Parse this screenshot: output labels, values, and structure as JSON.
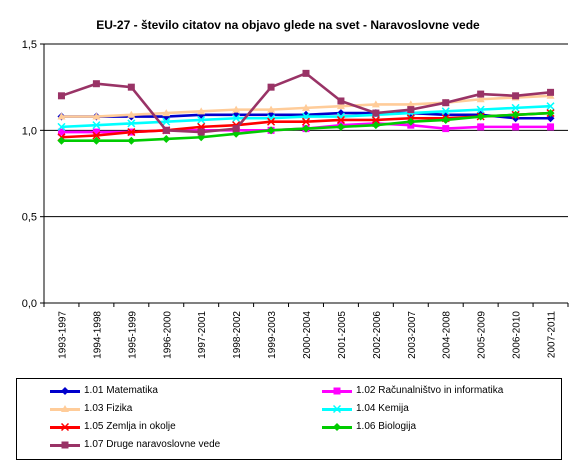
{
  "chart_data": {
    "type": "line",
    "title": "EU-27 - število citatov na objavo glede na svet - Naravoslovne vede",
    "xlabel": "",
    "ylabel": "",
    "ylim": [
      0,
      1.5
    ],
    "yticks": [
      "0,0",
      "0,5",
      "1,0",
      "1,5"
    ],
    "grid": "horizontal major",
    "legend_position": "bottom",
    "categories": [
      "1993-1997",
      "1994-1998",
      "1995-1999",
      "1996-2000",
      "1997-2001",
      "1998-2002",
      "1999-2003",
      "2000-2004",
      "2001-2005",
      "2002-2006",
      "2003-2007",
      "2004-2008",
      "2005-2009",
      "2006-2010",
      "2007-2011"
    ],
    "series": [
      {
        "name": "1.01 Matematika",
        "color": "#0000cc",
        "marker": "diamond",
        "values": [
          1.08,
          1.08,
          1.08,
          1.08,
          1.09,
          1.09,
          1.09,
          1.09,
          1.1,
          1.1,
          1.1,
          1.09,
          1.09,
          1.07,
          1.07
        ]
      },
      {
        "name": "1.02 Računalništvo in informatika",
        "color": "#ff00ff",
        "marker": "square",
        "values": [
          0.99,
          0.99,
          0.99,
          1.0,
          1.0,
          1.0,
          1.0,
          1.01,
          1.03,
          1.04,
          1.03,
          1.01,
          1.02,
          1.02,
          1.02
        ]
      },
      {
        "name": "1.03 Fizika",
        "color": "#ffcc99",
        "marker": "triangle",
        "values": [
          1.08,
          1.08,
          1.09,
          1.1,
          1.11,
          1.12,
          1.12,
          1.13,
          1.14,
          1.15,
          1.15,
          1.16,
          1.18,
          1.19,
          1.2
        ]
      },
      {
        "name": "1.04 Kemija",
        "color": "#00ffff",
        "marker": "x",
        "values": [
          1.02,
          1.03,
          1.04,
          1.05,
          1.06,
          1.07,
          1.07,
          1.08,
          1.08,
          1.09,
          1.1,
          1.11,
          1.12,
          1.13,
          1.14
        ]
      },
      {
        "name": "1.05 Zemlja in okolje",
        "color": "#ff0000",
        "marker": "x",
        "values": [
          0.96,
          0.97,
          0.99,
          1.0,
          1.02,
          1.03,
          1.05,
          1.05,
          1.06,
          1.06,
          1.07,
          1.07,
          1.08,
          1.09,
          1.1
        ]
      },
      {
        "name": "1.06 Biologija",
        "color": "#00cc00",
        "marker": "diamond",
        "values": [
          0.94,
          0.94,
          0.94,
          0.95,
          0.96,
          0.98,
          1.0,
          1.01,
          1.02,
          1.03,
          1.05,
          1.06,
          1.08,
          1.09,
          1.1
        ]
      },
      {
        "name": "1.07 Druge naravoslovne vede",
        "color": "#993366",
        "marker": "square",
        "values": [
          1.2,
          1.27,
          1.25,
          1.0,
          0.99,
          1.01,
          1.25,
          1.33,
          1.17,
          1.1,
          1.12,
          1.16,
          1.21,
          1.2,
          1.22
        ]
      }
    ]
  }
}
